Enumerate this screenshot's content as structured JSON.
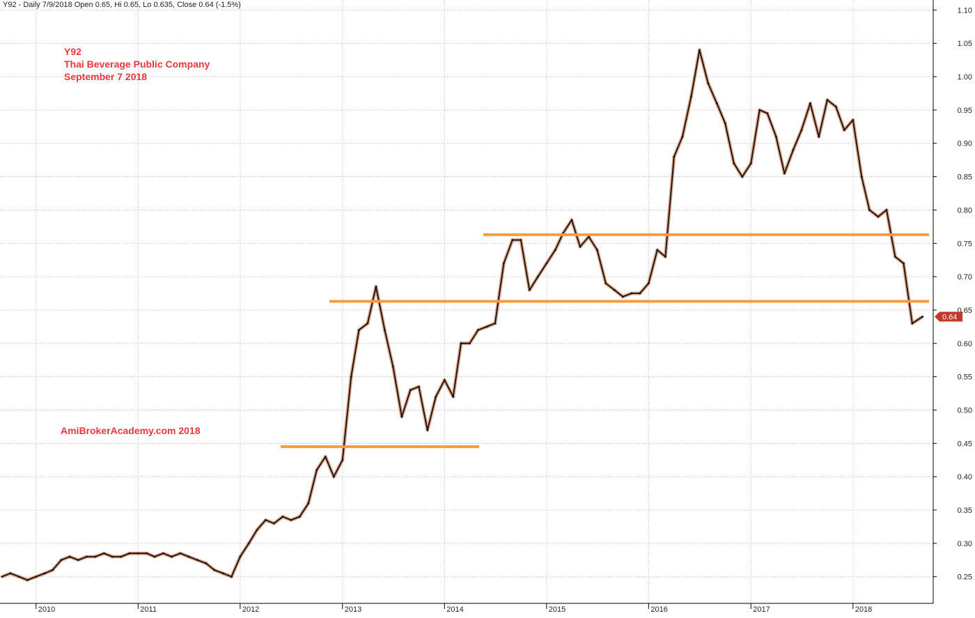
{
  "header": {
    "text": "Y92 - Daily 7/9/2018 Open 0.65, Hi 0.65, Lo 0.635, Close 0.64 (-1.5%)"
  },
  "annotations": {
    "symbol": "Y92",
    "company": "Thai Beverage Public Company",
    "date": "September 7 2018",
    "watermark": "AmiBrokerAcademy.com  2018"
  },
  "colors": {
    "background": "#ffffff",
    "grid": "#b8b8b8",
    "price_dark": "#111111",
    "price_light": "#c8693e",
    "support_line": "#f79a40",
    "annotation_text": "#e8363c",
    "last_price_badge": "#c0392b"
  },
  "chart_data": {
    "type": "line",
    "title": "Y92 - Daily 7/9/2018 Open 0.65, Hi 0.65, Lo 0.635, Close 0.64 (-1.5%)",
    "xlabel": "",
    "ylabel": "",
    "x_ticks": [
      "2010",
      "2011",
      "2012",
      "2013",
      "2014",
      "2015",
      "2016",
      "2017",
      "2018"
    ],
    "y_ticks": [
      "0.25",
      "0.30",
      "0.35",
      "0.40",
      "0.45",
      "0.50",
      "0.55",
      "0.60",
      "0.65",
      "0.70",
      "0.75",
      "0.80",
      "0.85",
      "0.90",
      "0.95",
      "1.00",
      "1.05",
      "1.10"
    ],
    "ylim": [
      0.21,
      1.115
    ],
    "xlim": [
      "2009-08-25",
      "2018-10-15"
    ],
    "grid": true,
    "series": [
      {
        "values": [
          [
            "2009-09-01",
            0.25
          ],
          [
            "2009-10-01",
            0.255
          ],
          [
            "2009-11-01",
            0.25
          ],
          [
            "2009-12-01",
            0.245
          ],
          [
            "2010-01-01",
            0.25
          ],
          [
            "2010-02-01",
            0.255
          ],
          [
            "2010-03-01",
            0.26
          ],
          [
            "2010-04-01",
            0.275
          ],
          [
            "2010-05-01",
            0.28
          ],
          [
            "2010-06-01",
            0.275
          ],
          [
            "2010-07-01",
            0.28
          ],
          [
            "2010-08-01",
            0.28
          ],
          [
            "2010-09-01",
            0.285
          ],
          [
            "2010-10-01",
            0.28
          ],
          [
            "2010-11-01",
            0.28
          ],
          [
            "2010-12-01",
            0.285
          ],
          [
            "2011-01-01",
            0.285
          ],
          [
            "2011-02-01",
            0.285
          ],
          [
            "2011-03-01",
            0.28
          ],
          [
            "2011-04-01",
            0.285
          ],
          [
            "2011-05-01",
            0.28
          ],
          [
            "2011-06-01",
            0.285
          ],
          [
            "2011-07-01",
            0.28
          ],
          [
            "2011-08-01",
            0.275
          ],
          [
            "2011-09-01",
            0.27
          ],
          [
            "2011-10-01",
            0.26
          ],
          [
            "2011-11-01",
            0.255
          ],
          [
            "2011-12-01",
            0.25
          ],
          [
            "2012-01-01",
            0.28
          ],
          [
            "2012-02-01",
            0.3
          ],
          [
            "2012-03-01",
            0.32
          ],
          [
            "2012-04-01",
            0.335
          ],
          [
            "2012-05-01",
            0.33
          ],
          [
            "2012-06-01",
            0.34
          ],
          [
            "2012-07-01",
            0.335
          ],
          [
            "2012-08-01",
            0.34
          ],
          [
            "2012-09-01",
            0.36
          ],
          [
            "2012-10-01",
            0.41
          ],
          [
            "2012-11-01",
            0.43
          ],
          [
            "2012-12-01",
            0.4
          ],
          [
            "2013-01-01",
            0.425
          ],
          [
            "2013-02-01",
            0.55
          ],
          [
            "2013-03-01",
            0.62
          ],
          [
            "2013-04-01",
            0.63
          ],
          [
            "2013-05-01",
            0.685
          ],
          [
            "2013-06-01",
            0.62
          ],
          [
            "2013-07-01",
            0.565
          ],
          [
            "2013-08-01",
            0.49
          ],
          [
            "2013-09-01",
            0.53
          ],
          [
            "2013-10-01",
            0.535
          ],
          [
            "2013-11-01",
            0.47
          ],
          [
            "2013-12-01",
            0.52
          ],
          [
            "2014-01-01",
            0.545
          ],
          [
            "2014-02-01",
            0.52
          ],
          [
            "2014-03-01",
            0.6
          ],
          [
            "2014-04-01",
            0.6
          ],
          [
            "2014-05-01",
            0.62
          ],
          [
            "2014-06-01",
            0.625
          ],
          [
            "2014-07-01",
            0.63
          ],
          [
            "2014-08-01",
            0.72
          ],
          [
            "2014-09-01",
            0.755
          ],
          [
            "2014-10-01",
            0.755
          ],
          [
            "2014-11-01",
            0.68
          ],
          [
            "2014-12-01",
            0.7
          ],
          [
            "2015-01-01",
            0.72
          ],
          [
            "2015-02-01",
            0.74
          ],
          [
            "2015-03-01",
            0.765
          ],
          [
            "2015-04-01",
            0.785
          ],
          [
            "2015-05-01",
            0.745
          ],
          [
            "2015-06-01",
            0.76
          ],
          [
            "2015-07-01",
            0.74
          ],
          [
            "2015-08-01",
            0.69
          ],
          [
            "2015-09-01",
            0.68
          ],
          [
            "2015-10-01",
            0.67
          ],
          [
            "2015-11-01",
            0.675
          ],
          [
            "2015-12-01",
            0.675
          ],
          [
            "2016-01-01",
            0.69
          ],
          [
            "2016-02-01",
            0.74
          ],
          [
            "2016-03-01",
            0.73
          ],
          [
            "2016-04-01",
            0.88
          ],
          [
            "2016-05-01",
            0.91
          ],
          [
            "2016-06-01",
            0.97
          ],
          [
            "2016-07-01",
            1.04
          ],
          [
            "2016-08-01",
            0.99
          ],
          [
            "2016-09-01",
            0.96
          ],
          [
            "2016-10-01",
            0.93
          ],
          [
            "2016-11-01",
            0.87
          ],
          [
            "2016-12-01",
            0.85
          ],
          [
            "2017-01-01",
            0.87
          ],
          [
            "2017-02-01",
            0.95
          ],
          [
            "2017-03-01",
            0.945
          ],
          [
            "2017-04-01",
            0.91
          ],
          [
            "2017-05-01",
            0.855
          ],
          [
            "2017-06-01",
            0.89
          ],
          [
            "2017-07-01",
            0.92
          ],
          [
            "2017-08-01",
            0.96
          ],
          [
            "2017-09-01",
            0.91
          ],
          [
            "2017-10-01",
            0.965
          ],
          [
            "2017-11-01",
            0.955
          ],
          [
            "2017-12-01",
            0.92
          ],
          [
            "2018-01-01",
            0.935
          ],
          [
            "2018-02-01",
            0.85
          ],
          [
            "2018-03-01",
            0.8
          ],
          [
            "2018-04-01",
            0.79
          ],
          [
            "2018-05-01",
            0.8
          ],
          [
            "2018-06-01",
            0.73
          ],
          [
            "2018-07-01",
            0.72
          ],
          [
            "2018-08-01",
            0.63
          ],
          [
            "2018-09-07",
            0.64
          ]
        ]
      }
    ],
    "horizontal_lines": [
      {
        "y": 0.445,
        "x_start": "2012-05-25",
        "x_end": "2014-05-05"
      },
      {
        "y": 0.663,
        "x_start": "2012-11-15",
        "x_end": "2018-09-30"
      },
      {
        "y": 0.763,
        "x_start": "2014-05-20",
        "x_end": "2018-09-30"
      }
    ],
    "last_price_label": "0.64",
    "last_price_value": 0.64
  }
}
